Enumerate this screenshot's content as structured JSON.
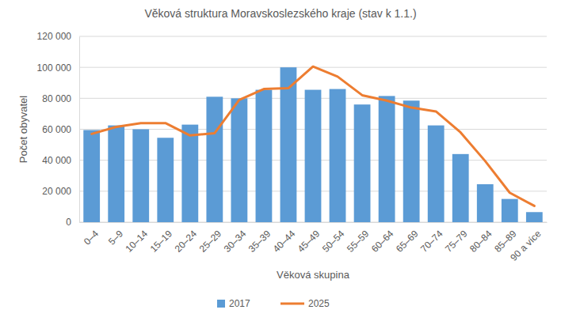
{
  "chart_data": {
    "type": "bar",
    "title": "Věková struktura Moravskoslezského kraje (stav k 1.1.)",
    "x_label": "Věková skupina",
    "y_label": "Počet obyvatel",
    "categories": [
      "0–4",
      "5–9",
      "10–14",
      "15–19",
      "20–24",
      "25–29",
      "30–34",
      "35–39",
      "40–44",
      "45–49",
      "50–54",
      "55–59",
      "60–64",
      "65–69",
      "70–74",
      "75–79",
      "80–84",
      "85–89",
      "90 a více"
    ],
    "series": [
      {
        "name": "2017",
        "type": "bar",
        "color": "#5b9bd5",
        "values": [
          59500,
          62500,
          60000,
          54500,
          63000,
          81000,
          80000,
          85500,
          100000,
          85500,
          86000,
          76000,
          81500,
          78500,
          62500,
          44000,
          24500,
          15000,
          6500
        ]
      },
      {
        "name": "2025",
        "type": "line",
        "color": "#ed7d31",
        "values": [
          57000,
          61500,
          64000,
          64000,
          56000,
          57500,
          79000,
          86000,
          86500,
          100500,
          94000,
          82000,
          78500,
          74000,
          71500,
          58000,
          39500,
          19000,
          10500
        ]
      }
    ],
    "ylim": [
      0,
      120000
    ],
    "yticks": [
      0,
      {
        "value": 20000,
        "label": "20 000"
      },
      {
        "value": 40000,
        "label": "40 000"
      },
      {
        "value": 60000,
        "label": "60 000"
      },
      {
        "value": 80000,
        "label": "80 000"
      },
      {
        "value": 100000,
        "label": "100 000"
      },
      {
        "value": 120000,
        "label": "120 000"
      }
    ],
    "grid": true,
    "legend": "bottom"
  }
}
